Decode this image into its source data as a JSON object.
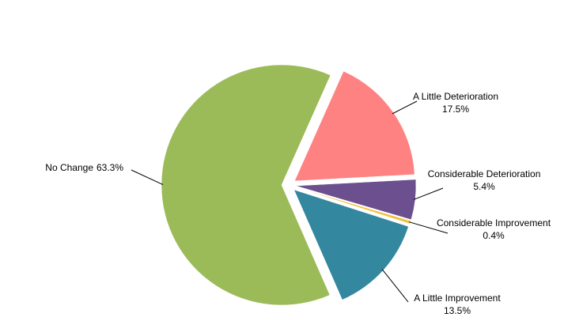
{
  "chart_data": {
    "type": "pie",
    "categories": [
      "A Little Deterioration",
      "Considerable Deterioration",
      "Considerable Improvement",
      "A Little Improvement",
      "No Change"
    ],
    "values": [
      17.5,
      5.4,
      0.4,
      13.5,
      63.3
    ],
    "value_labels": [
      "17.5%",
      "5.4%",
      "0.4%",
      "13.5%",
      "63.3%"
    ],
    "colors": [
      "#ff8282",
      "#6b4f8e",
      "#f2c23a",
      "#33879e",
      "#9bbb59"
    ]
  }
}
